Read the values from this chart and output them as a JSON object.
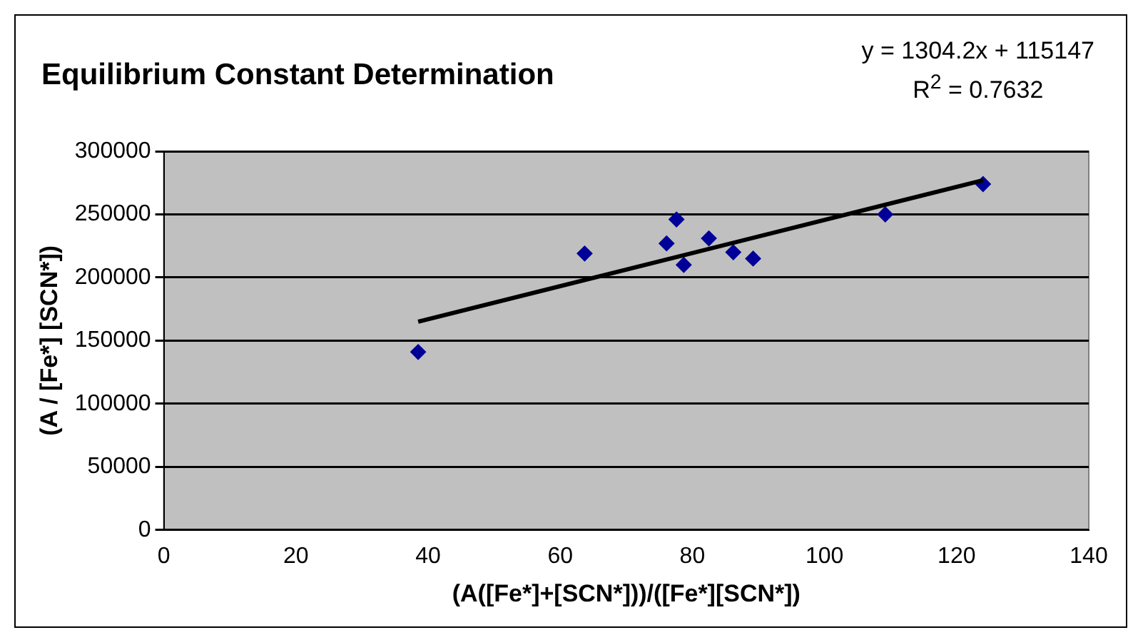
{
  "chart_data": {
    "type": "scatter",
    "title": "Equilibrium Constant Determination",
    "xlabel": "(A([Fe*]+[SCN*]))/([Fe*][SCN*])",
    "ylabel": "(A / [Fe*] [SCN*])",
    "annotations": [
      "y = 1304.2x + 115147",
      "R$^{2}$ = 0.7632"
    ],
    "series": [
      {
        "color": "#000099",
        "marker": "diamond",
        "x": [
          38.5,
          63.7,
          76.1,
          77.6,
          78.7,
          82.5,
          86.2,
          89.2,
          109.2,
          124.0
        ],
        "values": [
          141000,
          219000,
          227000,
          246000,
          210000,
          231000,
          220000,
          215000,
          250000,
          274000
        ]
      },
      {
        "type": "line",
        "color": "#000000",
        "marker": "none",
        "line_style": "solid",
        "x": [
          38.5,
          124.0
        ],
        "values": [
          165000,
          277000
        ]
      }
    ],
    "xlim": [
      0,
      140
    ],
    "xticks": [
      0,
      20,
      40,
      60,
      80,
      100,
      120,
      140
    ],
    "ylim": [
      0,
      300000
    ],
    "yticks": [
      0,
      50000,
      100000,
      150000,
      200000,
      250000,
      300000
    ],
    "grid": "y",
    "legend": false
  }
}
